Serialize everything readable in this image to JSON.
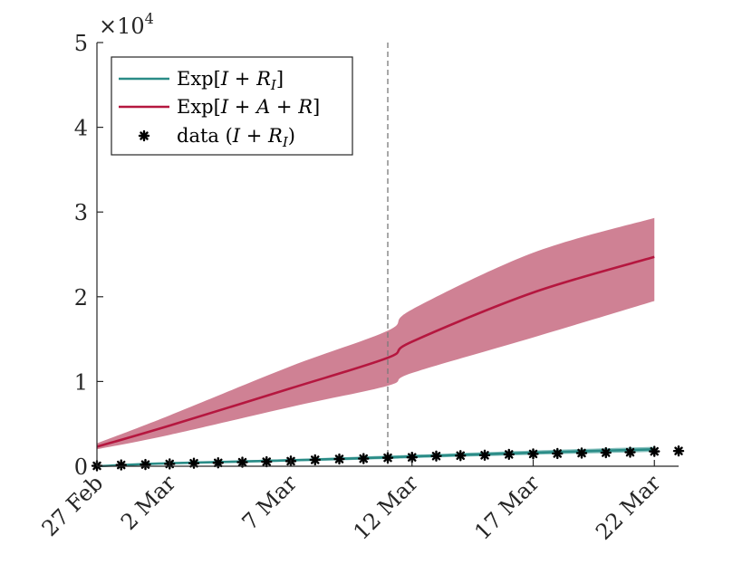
{
  "chart_data": {
    "type": "line",
    "x_ticks": [
      "27 Feb",
      "2 Mar",
      "7 Mar",
      "12 Mar",
      "17 Mar",
      "22 Mar"
    ],
    "xlim_day_index": [
      0,
      24
    ],
    "ylim": [
      0,
      50000
    ],
    "y_ticks": [
      "0",
      "1",
      "2",
      "3",
      "4",
      "5"
    ],
    "y_exponent_label": "×10",
    "y_exponent_power": "4",
    "vline_date": "11 Mar",
    "legend_position": "top-left",
    "colors": {
      "teal": "#2a8c87",
      "teal_band": "#7fbdb9",
      "crimson": "#b5173f",
      "crimson_band": "#cc7a8e",
      "data": "#000000"
    },
    "series": [
      {
        "name": "Exp[I + R_I]",
        "legend": {
          "pre": "Exp[",
          "math": "I",
          "mid": " + ",
          "math2": "R",
          "sub": "I",
          "post": "]"
        },
        "x_dates": [
          "27 Feb",
          "2 Mar",
          "7 Mar",
          "11 Mar",
          "12 Mar",
          "17 Mar",
          "22 Mar"
        ],
        "values": [
          0,
          350,
          700,
          1050,
          1150,
          1600,
          2000
        ],
        "band_lower": [
          0,
          250,
          550,
          850,
          950,
          1350,
          1700
        ],
        "band_upper": [
          0,
          450,
          850,
          1250,
          1350,
          1850,
          2300
        ]
      },
      {
        "name": "Exp[I + A + R]",
        "legend": {
          "pre": "Exp[",
          "math": "I",
          "mid": " + ",
          "math2": "A",
          "mid2": " + ",
          "math3": "R",
          "post": "]"
        },
        "x_dates": [
          "27 Feb",
          "2 Mar",
          "7 Mar",
          "11 Mar",
          "12 Mar",
          "17 Mar",
          "22 Mar"
        ],
        "values": [
          2300,
          4800,
          9200,
          12800,
          14700,
          20500,
          24700
        ],
        "band_lower": [
          2000,
          3700,
          7000,
          9500,
          11000,
          15200,
          19500
        ],
        "band_upper": [
          2700,
          6000,
          11800,
          16000,
          18500,
          25200,
          29300
        ]
      },
      {
        "name": "data (I + R_I)",
        "legend": {
          "pre": "data (",
          "math": "I",
          "mid": " + ",
          "math2": "R",
          "sub": "I",
          "post": ")"
        },
        "marker": "asterisk",
        "values": [
          50,
          150,
          200,
          270,
          350,
          400,
          470,
          530,
          600,
          750,
          850,
          900,
          1000,
          1050,
          1200,
          1250,
          1300,
          1400,
          1450,
          1500,
          1550,
          1600,
          1650,
          1750,
          1800
        ]
      }
    ]
  }
}
